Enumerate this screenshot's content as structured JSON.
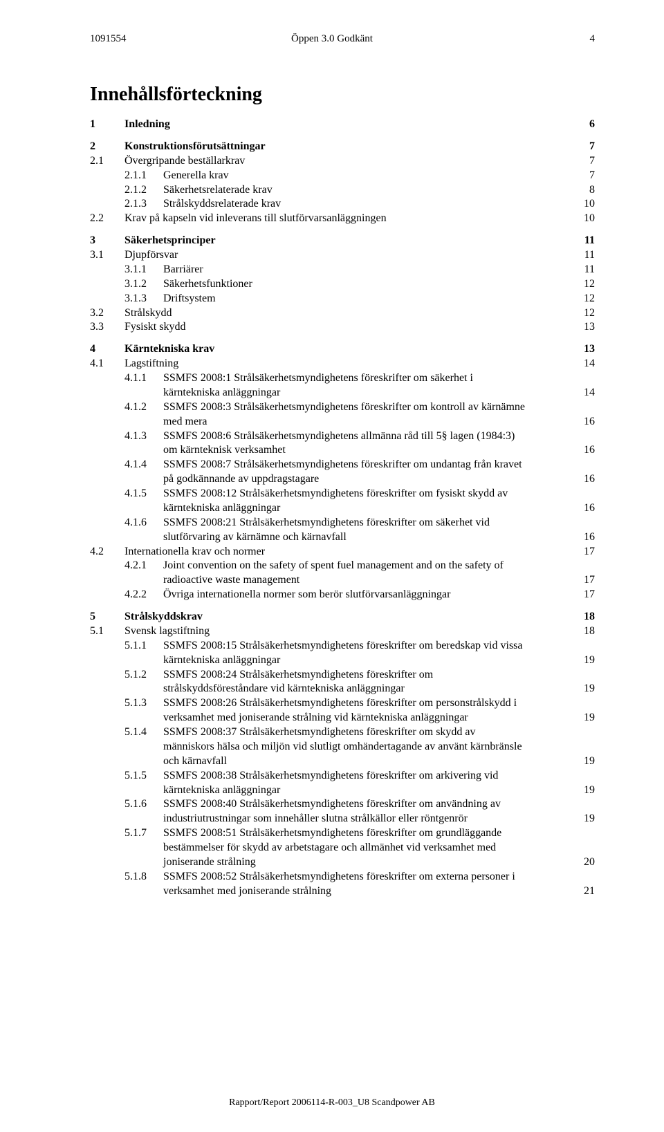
{
  "header": {
    "doc_id": "1091554",
    "center": "Öppen 3.0 Godkänt",
    "page_num": "4"
  },
  "title": "Innehållsförteckning",
  "footer": "Rapport/Report 2006114-R-003_U8 Scandpower AB",
  "toc": [
    {
      "type": "row",
      "lvl": 1,
      "bold": true,
      "num": "1",
      "text": "Inledning",
      "page": "6"
    },
    {
      "type": "gap"
    },
    {
      "type": "row",
      "lvl": 1,
      "bold": true,
      "num": "2",
      "text": "Konstruktionsförutsättningar",
      "page": "7"
    },
    {
      "type": "row",
      "lvl": 2,
      "num": "2.1",
      "text": "Övergripande beställarkrav",
      "page": "7"
    },
    {
      "type": "row",
      "lvl": 3,
      "num": "2.1.1",
      "text": "Generella krav",
      "page": "7"
    },
    {
      "type": "row",
      "lvl": 3,
      "num": "2.1.2",
      "text": "Säkerhetsrelaterade krav",
      "page": "8"
    },
    {
      "type": "row",
      "lvl": 3,
      "num": "2.1.3",
      "text": "Strålskyddsrelaterade krav",
      "page": "10"
    },
    {
      "type": "row",
      "lvl": 2,
      "num": "2.2",
      "text": "Krav på kapseln vid inleverans till slutförvarsanläggningen",
      "page": "10"
    },
    {
      "type": "gap"
    },
    {
      "type": "row",
      "lvl": 1,
      "bold": true,
      "num": "3",
      "text": "Säkerhetsprinciper",
      "page": "11"
    },
    {
      "type": "row",
      "lvl": 2,
      "num": "3.1",
      "text": "Djupförsvar",
      "page": "11"
    },
    {
      "type": "row",
      "lvl": 3,
      "num": "3.1.1",
      "text": "Barriärer",
      "page": "11"
    },
    {
      "type": "row",
      "lvl": 3,
      "num": "3.1.2",
      "text": "Säkerhetsfunktioner",
      "page": "12"
    },
    {
      "type": "row",
      "lvl": 3,
      "num": "3.1.3",
      "text": "Driftsystem",
      "page": "12"
    },
    {
      "type": "row",
      "lvl": 2,
      "num": "3.2",
      "text": "Strålskydd",
      "page": "12"
    },
    {
      "type": "row",
      "lvl": 2,
      "num": "3.3",
      "text": "Fysiskt skydd",
      "page": "13"
    },
    {
      "type": "gap"
    },
    {
      "type": "row",
      "lvl": 1,
      "bold": true,
      "num": "4",
      "text": "Kärntekniska krav",
      "page": "13"
    },
    {
      "type": "row",
      "lvl": 2,
      "num": "4.1",
      "text": "Lagstiftning",
      "page": "14"
    },
    {
      "type": "row",
      "lvl": 3,
      "num": "4.1.1",
      "text": "SSMFS 2008:1 Strålsäkerhetsmyndighetens föreskrifter om säkerhet i"
    },
    {
      "type": "cont",
      "text": "kärntekniska anläggningar",
      "page": "14"
    },
    {
      "type": "row",
      "lvl": 3,
      "num": "4.1.2",
      "text": "SSMFS 2008:3 Strålsäkerhetsmyndighetens föreskrifter om kontroll av kärnämne"
    },
    {
      "type": "cont",
      "text": "med mera",
      "page": "16"
    },
    {
      "type": "row",
      "lvl": 3,
      "num": "4.1.3",
      "text": "SSMFS 2008:6 Strålsäkerhetsmyndighetens allmänna råd till 5§ lagen (1984:3)"
    },
    {
      "type": "cont",
      "text": "om kärnteknisk verksamhet",
      "page": "16"
    },
    {
      "type": "row",
      "lvl": 3,
      "num": "4.1.4",
      "text": "SSMFS 2008:7 Strålsäkerhetsmyndighetens föreskrifter om undantag från kravet"
    },
    {
      "type": "cont",
      "text": "på godkännande av uppdragstagare",
      "page": "16"
    },
    {
      "type": "row",
      "lvl": 3,
      "num": "4.1.5",
      "text": "SSMFS 2008:12 Strålsäkerhetsmyndighetens föreskrifter om fysiskt skydd av"
    },
    {
      "type": "cont",
      "text": "kärntekniska anläggningar",
      "page": "16"
    },
    {
      "type": "row",
      "lvl": 3,
      "num": "4.1.6",
      "text": "SSMFS 2008:21 Strålsäkerhetsmyndighetens föreskrifter om säkerhet vid"
    },
    {
      "type": "cont",
      "text": "slutförvaring av kärnämne och kärnavfall",
      "page": "16"
    },
    {
      "type": "row",
      "lvl": 2,
      "num": "4.2",
      "text": "Internationella krav och normer",
      "page": "17"
    },
    {
      "type": "row",
      "lvl": 3,
      "num": "4.2.1",
      "text": "Joint convention on the safety of spent fuel management and on the safety of"
    },
    {
      "type": "cont",
      "text": "radioactive waste management",
      "page": "17"
    },
    {
      "type": "row",
      "lvl": 3,
      "num": "4.2.2",
      "text": "Övriga internationella normer som berör slutförvarsanläggningar",
      "page": "17"
    },
    {
      "type": "gap"
    },
    {
      "type": "row",
      "lvl": 1,
      "bold": true,
      "num": "5",
      "text": "Strålskyddskrav",
      "page": "18"
    },
    {
      "type": "row",
      "lvl": 2,
      "num": "5.1",
      "text": "Svensk lagstiftning",
      "page": "18"
    },
    {
      "type": "row",
      "lvl": 3,
      "num": "5.1.1",
      "text": "SSMFS 2008:15 Strålsäkerhetsmyndighetens föreskrifter om beredskap vid vissa"
    },
    {
      "type": "cont",
      "text": "kärntekniska anläggningar",
      "page": "19"
    },
    {
      "type": "row",
      "lvl": 3,
      "num": "5.1.2",
      "text": "SSMFS 2008:24 Strålsäkerhetsmyndighetens föreskrifter om"
    },
    {
      "type": "cont",
      "text": "strålskyddsföreståndare vid kärntekniska anläggningar",
      "page": "19"
    },
    {
      "type": "row",
      "lvl": 3,
      "num": "5.1.3",
      "text": "SSMFS 2008:26 Strålsäkerhetsmyndighetens föreskrifter om personstrålskydd i"
    },
    {
      "type": "cont",
      "text": "verksamhet med joniserande strålning vid kärntekniska anläggningar",
      "page": "19"
    },
    {
      "type": "row",
      "lvl": 3,
      "num": "5.1.4",
      "text": "SSMFS 2008:37 Strålsäkerhetsmyndighetens föreskrifter om skydd av"
    },
    {
      "type": "cont",
      "text": "människors hälsa och miljön vid slutligt omhändertagande av använt kärnbränsle"
    },
    {
      "type": "cont",
      "text": "och kärnavfall",
      "page": "19"
    },
    {
      "type": "row",
      "lvl": 3,
      "num": "5.1.5",
      "text": "SSMFS 2008:38 Strålsäkerhetsmyndighetens föreskrifter om arkivering vid"
    },
    {
      "type": "cont",
      "text": "kärntekniska anläggningar",
      "page": "19"
    },
    {
      "type": "row",
      "lvl": 3,
      "num": "5.1.6",
      "text": "SSMFS 2008:40 Strålsäkerhetsmyndighetens föreskrifter om användning av"
    },
    {
      "type": "cont",
      "text": "industriutrustningar som innehåller slutna strålkällor eller röntgenrör",
      "page": "19"
    },
    {
      "type": "row",
      "lvl": 3,
      "num": "5.1.7",
      "text": "SSMFS 2008:51 Strålsäkerhetsmyndighetens föreskrifter om grundläggande"
    },
    {
      "type": "cont",
      "text": "bestämmelser för skydd av arbetstagare och allmänhet vid verksamhet med"
    },
    {
      "type": "cont",
      "text": "joniserande strålning",
      "page": "20"
    },
    {
      "type": "row",
      "lvl": 3,
      "num": "5.1.8",
      "text": "SSMFS 2008:52 Strålsäkerhetsmyndighetens föreskrifter om externa personer i"
    },
    {
      "type": "cont",
      "text": "verksamhet med joniserande strålning",
      "page": "21"
    }
  ]
}
